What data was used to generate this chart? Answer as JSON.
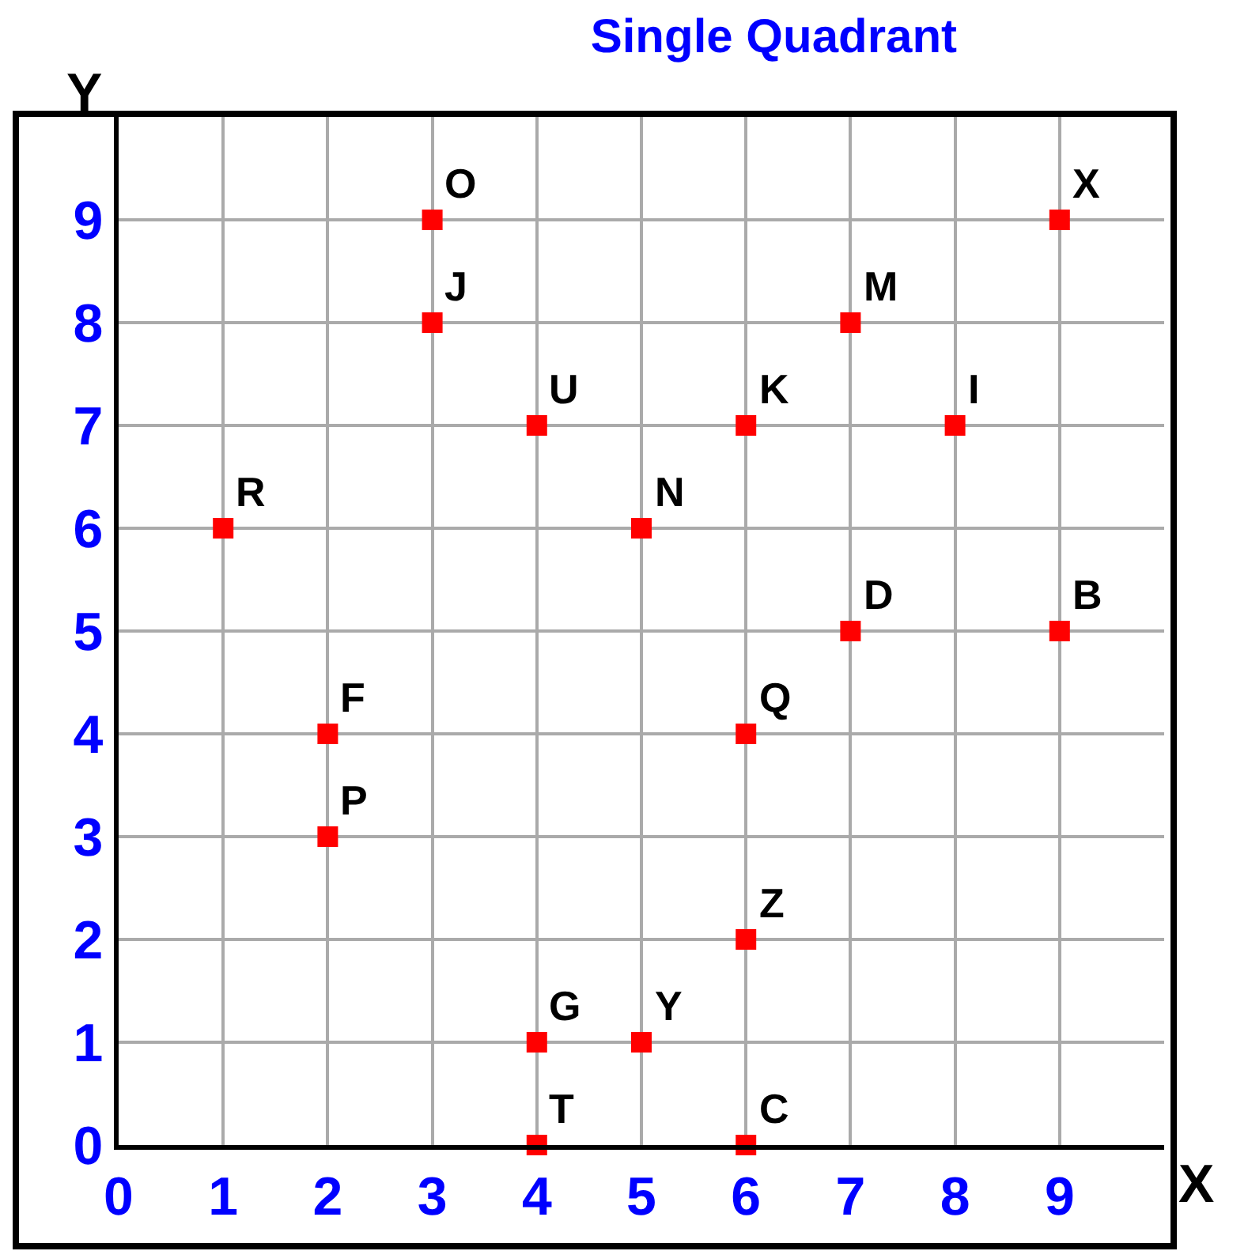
{
  "chart_data": {
    "type": "scatter",
    "title": "Single Quadrant",
    "xlabel": "X",
    "ylabel": "Y",
    "x": [
      3,
      9,
      3,
      7,
      4,
      6,
      8,
      1,
      5,
      7,
      9,
      2,
      6,
      2,
      6,
      4,
      5,
      4,
      6
    ],
    "values": [
      9,
      9,
      8,
      8,
      7,
      7,
      7,
      6,
      6,
      5,
      5,
      4,
      4,
      3,
      2,
      1,
      1,
      0,
      0
    ],
    "color": "#ff0000",
    "marker": "square",
    "grid": true,
    "xlim": [
      0,
      10
    ],
    "ylim": [
      0,
      10
    ],
    "xticks": [
      0,
      1,
      2,
      3,
      4,
      5,
      6,
      7,
      8,
      9
    ],
    "yticks": [
      0,
      1,
      2,
      3,
      4,
      5,
      6,
      7,
      8,
      9
    ],
    "annotations": [
      {
        "text": "O",
        "x": 3,
        "y": 9
      },
      {
        "text": "X",
        "x": 9,
        "y": 9
      },
      {
        "text": "J",
        "x": 3,
        "y": 8
      },
      {
        "text": "M",
        "x": 7,
        "y": 8
      },
      {
        "text": "U",
        "x": 4,
        "y": 7
      },
      {
        "text": "K",
        "x": 6,
        "y": 7
      },
      {
        "text": "I",
        "x": 8,
        "y": 7
      },
      {
        "text": "R",
        "x": 1,
        "y": 6
      },
      {
        "text": "N",
        "x": 5,
        "y": 6
      },
      {
        "text": "D",
        "x": 7,
        "y": 5
      },
      {
        "text": "B",
        "x": 9,
        "y": 5
      },
      {
        "text": "F",
        "x": 2,
        "y": 4
      },
      {
        "text": "Q",
        "x": 6,
        "y": 4
      },
      {
        "text": "P",
        "x": 2,
        "y": 3
      },
      {
        "text": "Z",
        "x": 6,
        "y": 2
      },
      {
        "text": "G",
        "x": 4,
        "y": 1
      },
      {
        "text": "Y",
        "x": 5,
        "y": 1
      },
      {
        "text": "T",
        "x": 4,
        "y": 0
      },
      {
        "text": "C",
        "x": 6,
        "y": 0
      }
    ]
  }
}
